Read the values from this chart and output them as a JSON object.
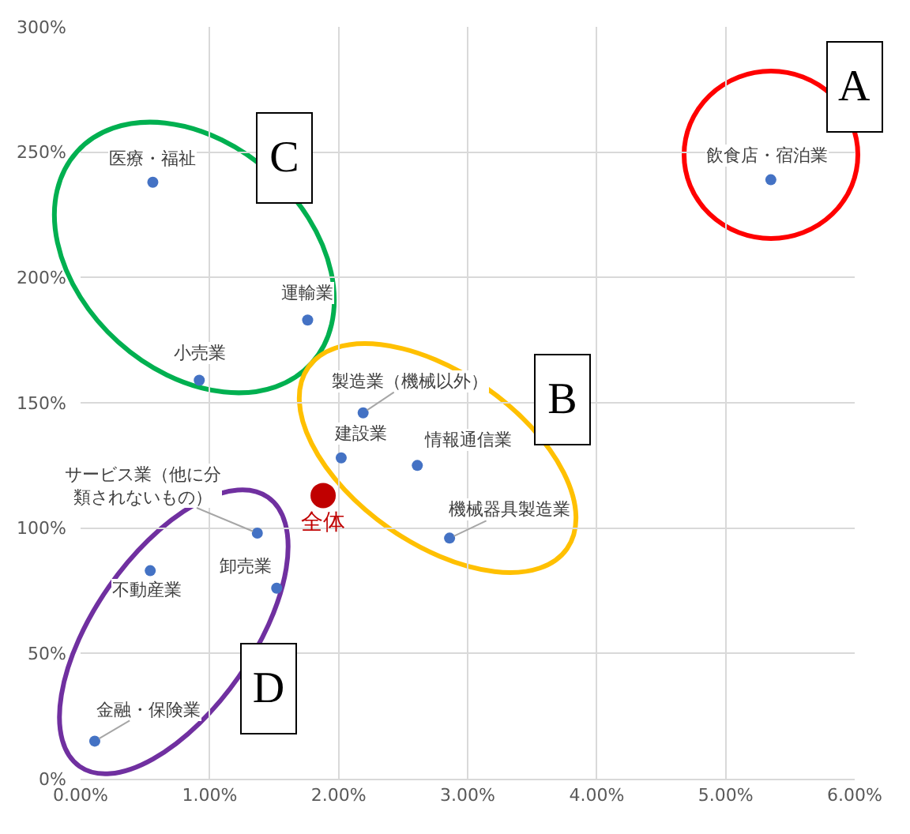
{
  "chart_data": {
    "type": "scatter",
    "xlim": [
      0,
      6
    ],
    "xticks": [
      {
        "value": 0,
        "label": "0.00%"
      },
      {
        "value": 1,
        "label": "1.00%"
      },
      {
        "value": 2,
        "label": "2.00%"
      },
      {
        "value": 3,
        "label": "3.00%"
      },
      {
        "value": 4,
        "label": "4.00%"
      },
      {
        "value": 5,
        "label": "5.00%"
      },
      {
        "value": 6,
        "label": "6.00%"
      }
    ],
    "ylim": [
      0,
      300
    ],
    "yticks": [
      {
        "value": 0,
        "label": "0%"
      },
      {
        "value": 50,
        "label": "50%"
      },
      {
        "value": 100,
        "label": "100%"
      },
      {
        "value": 150,
        "label": "150%"
      },
      {
        "value": 200,
        "label": "200%"
      },
      {
        "value": 250,
        "label": "250%"
      },
      {
        "value": 300,
        "label": "300%"
      }
    ],
    "grid": true,
    "legend": false,
    "marker": "circle",
    "series": [
      {
        "color": "#4472c4",
        "x": [
          0.56,
          1.76,
          0.92,
          5.35,
          2.19,
          2.02,
          2.61,
          2.86,
          1.37,
          0.54,
          1.52,
          0.11
        ],
        "values": [
          238,
          183,
          159,
          239,
          146,
          128,
          125,
          96,
          98,
          83,
          76,
          15
        ]
      },
      {
        "name": "全体",
        "color": "#c00000",
        "x": [
          1.88
        ],
        "values": [
          113
        ]
      }
    ],
    "annotations": [
      {
        "text": "医療・福祉",
        "x": 0.56,
        "y": 238
      },
      {
        "text": "運輸業",
        "x": 1.76,
        "y": 183
      },
      {
        "text": "小売業",
        "x": 0.92,
        "y": 159
      },
      {
        "text": "飲食店・宿泊業",
        "x": 5.35,
        "y": 239
      },
      {
        "text": "製造業（機械以外）",
        "x": 2.19,
        "y": 146
      },
      {
        "text": "建設業",
        "x": 2.02,
        "y": 128
      },
      {
        "text": "情報通信業",
        "x": 2.61,
        "y": 125
      },
      {
        "text": "機械器具製造業",
        "x": 2.86,
        "y": 96
      },
      {
        "text": "サービス業（他に分類されないもの）",
        "x": 1.37,
        "y": 98
      },
      {
        "text": "不動産業",
        "x": 0.54,
        "y": 83
      },
      {
        "text": "卸売業",
        "x": 1.52,
        "y": 76
      },
      {
        "text": "金融・保険業",
        "x": 0.11,
        "y": 15
      },
      "A",
      "B",
      "C",
      "D"
    ]
  }
}
